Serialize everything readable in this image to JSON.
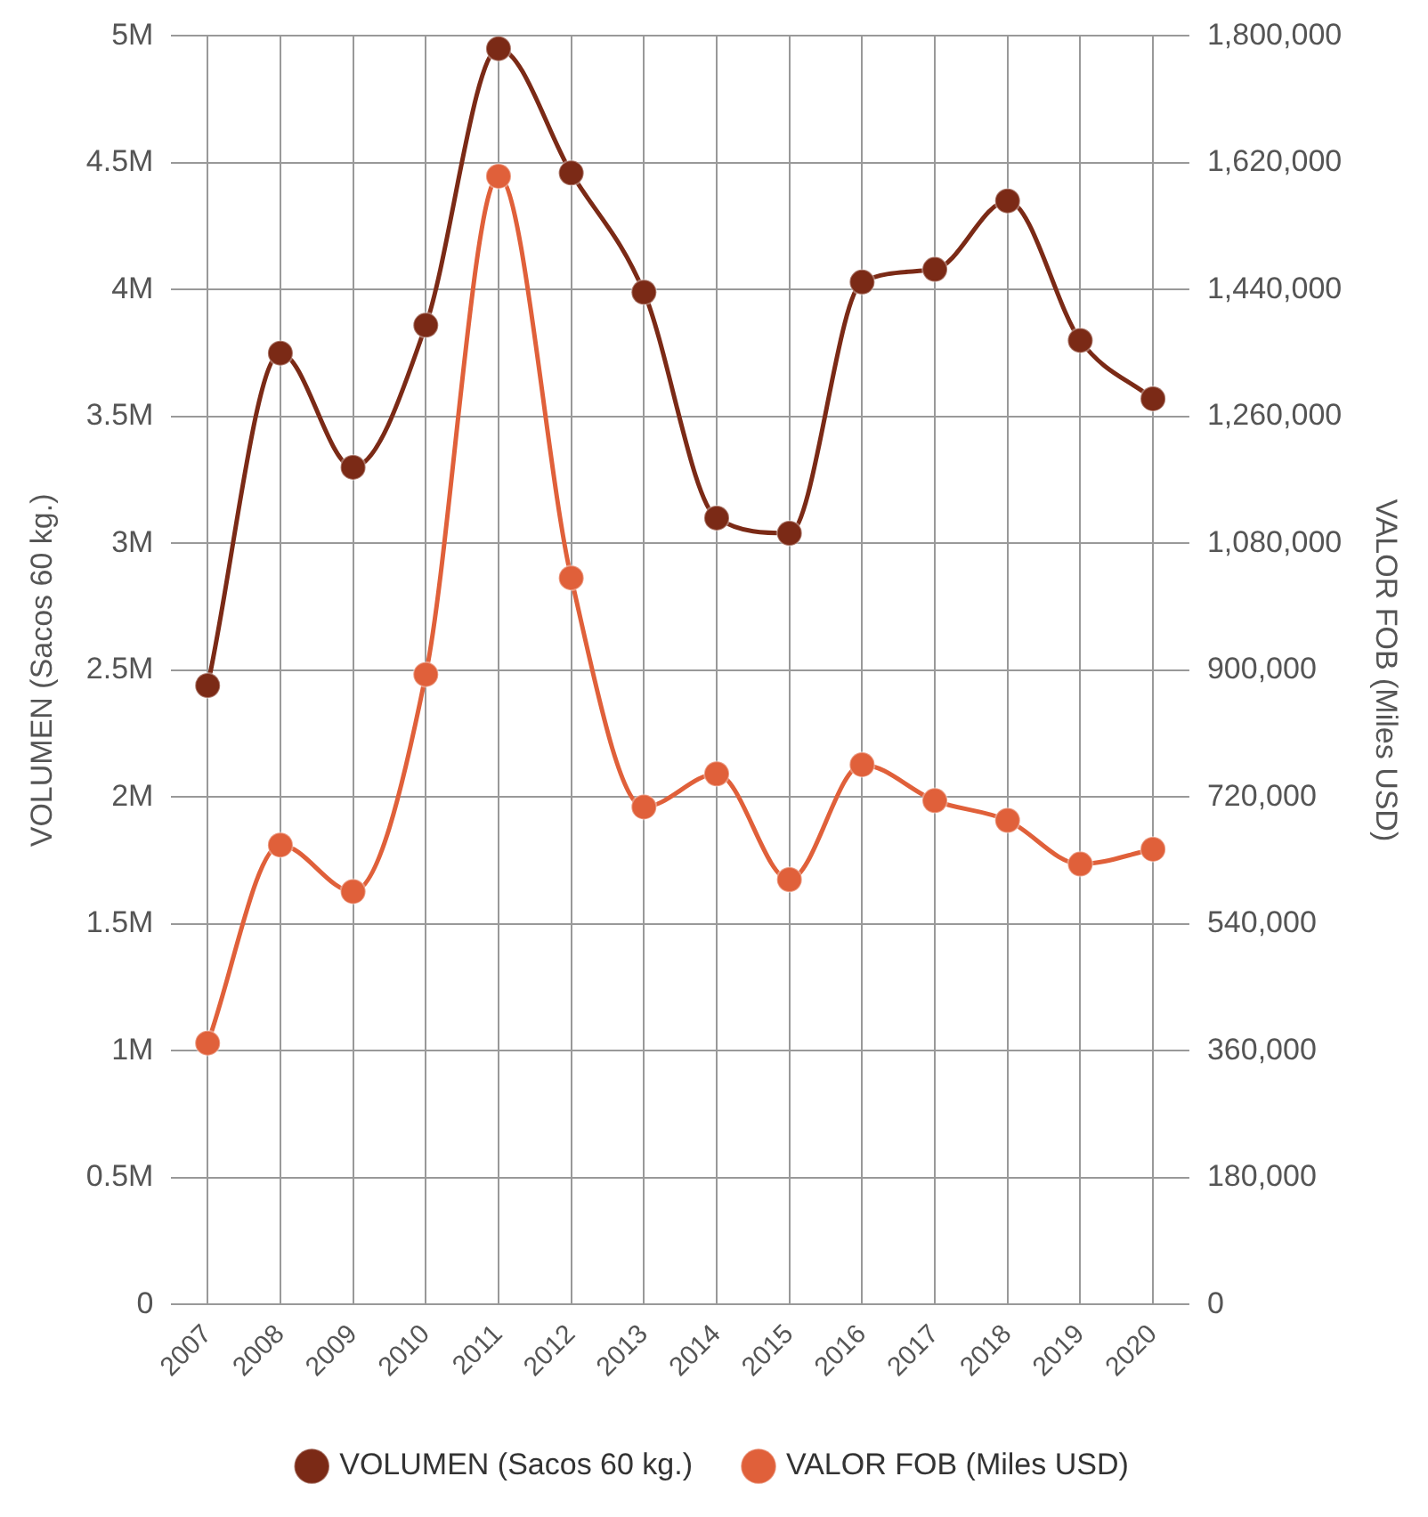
{
  "chart_data": {
    "type": "line",
    "ylabel": "VOLUMEN (Sacos 60 kg.)",
    "y2label": "VALOR FOB (Miles USD)",
    "categories": [
      "2007",
      "2008",
      "2009",
      "2010",
      "2011",
      "2012",
      "2013",
      "2014",
      "2015",
      "2016",
      "2017",
      "2018",
      "2019",
      "2020"
    ],
    "series": [
      {
        "name": "VOLUMEN (Sacos 60 kg.)",
        "color": "#7b2a16",
        "values": [
          2440000,
          3750000,
          3300000,
          3860000,
          4950000,
          4460000,
          3990000,
          3100000,
          3040000,
          4030000,
          4080000,
          4350000,
          3800000,
          3570000
        ]
      },
      {
        "name": "VALOR FOB (Miles USD)",
        "color": "#e0603a",
        "axis": "y2",
        "values": [
          371000,
          652000,
          586000,
          894000,
          1601000,
          1031000,
          706000,
          753000,
          603000,
          766000,
          715000,
          687000,
          625000,
          646000
        ]
      }
    ],
    "ylim": [
      0,
      5000000
    ],
    "yticks": [
      {
        "value": 0,
        "label": "0"
      },
      {
        "value": 500000,
        "label": "0.5M"
      },
      {
        "value": 1000000,
        "label": "1M"
      },
      {
        "value": 1500000,
        "label": "1.5M"
      },
      {
        "value": 2000000,
        "label": "2M"
      },
      {
        "value": 2500000,
        "label": "2.5M"
      },
      {
        "value": 3000000,
        "label": "3M"
      },
      {
        "value": 3500000,
        "label": "3.5M"
      },
      {
        "value": 4000000,
        "label": "4M"
      },
      {
        "value": 4500000,
        "label": "4.5M"
      },
      {
        "value": 5000000,
        "label": "5M"
      }
    ],
    "y2lim": [
      0,
      1800000
    ],
    "y2ticks": [
      {
        "value": 0,
        "label": "0"
      },
      {
        "value": 180000,
        "label": "180,000"
      },
      {
        "value": 360000,
        "label": "360,000"
      },
      {
        "value": 540000,
        "label": "540,000"
      },
      {
        "value": 720000,
        "label": "720,000"
      },
      {
        "value": 900000,
        "label": "900,000"
      },
      {
        "value": 1080000,
        "label": "1,080,000"
      },
      {
        "value": 1260000,
        "label": "1,260,000"
      },
      {
        "value": 1440000,
        "label": "1,440,000"
      },
      {
        "value": 1620000,
        "label": "1,620,000"
      },
      {
        "value": 1800000,
        "label": "1,800,000"
      }
    ],
    "grid": true,
    "legend": "bottom",
    "marker": "circle",
    "line_style": "solid"
  }
}
